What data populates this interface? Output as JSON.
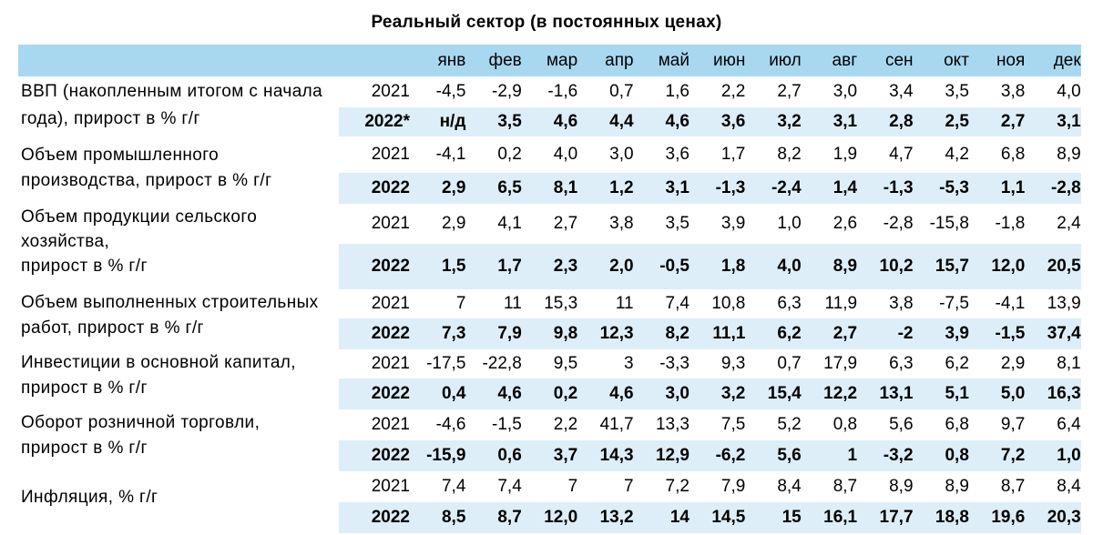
{
  "title": "Реальный сектор (в постоянных ценах)",
  "months": [
    "янв",
    "фев",
    "мар",
    "апр",
    "май",
    "июн",
    "июл",
    "авг",
    "сен",
    "окт",
    "ноя",
    "дек"
  ],
  "colors": {
    "header_bg": "#a8d8f0",
    "row2022_bg": "#ddeef8"
  },
  "indicators": [
    {
      "label_lines": [
        "ВВП (накопленным итогом с начала",
        "года), прирост в % г/г"
      ],
      "rows": [
        {
          "year": "2021",
          "values": [
            "-4,5",
            "-2,9",
            "-1,6",
            "0,7",
            "1,6",
            "2,2",
            "2,7",
            "3,0",
            "3,4",
            "3,5",
            "3,8",
            "4,0"
          ]
        },
        {
          "year": "2022*",
          "values": [
            "н/д",
            "3,5",
            "4,6",
            "4,4",
            "4,6",
            "3,6",
            "3,2",
            "3,1",
            "2,8",
            "2,5",
            "2,7",
            "3,1"
          ]
        }
      ]
    },
    {
      "label_lines": [
        "Объем промышленного",
        "производства, прирост в % г/г"
      ],
      "rows": [
        {
          "year": "2021",
          "values": [
            "-4,1",
            "0,2",
            "4,0",
            "3,0",
            "3,6",
            "1,7",
            "8,2",
            "1,9",
            "4,7",
            "4,2",
            "6,8",
            "8,9"
          ]
        },
        {
          "year": "2022",
          "values": [
            "2,9",
            "6,5",
            "8,1",
            "1,2",
            "3,1",
            "-1,3",
            "-2,4",
            "1,4",
            "-1,3",
            "-5,3",
            "1,1",
            "-2,8"
          ]
        }
      ]
    },
    {
      "label_lines": [
        "Объем продукции сельского",
        "хозяйства,",
        "прирост в % г/г"
      ],
      "rows": [
        {
          "year": "2021",
          "values": [
            "2,9",
            "4,1",
            "2,7",
            "3,8",
            "3,5",
            "3,9",
            "1,0",
            "2,6",
            "-2,8",
            "-15,8",
            "-1,8",
            "2,4"
          ]
        },
        {
          "year": "2022",
          "values": [
            "1,5",
            "1,7",
            "2,3",
            "2,0",
            "-0,5",
            "1,8",
            "4,0",
            "8,9",
            "10,2",
            "15,7",
            "12,0",
            "20,5"
          ]
        }
      ]
    },
    {
      "label_lines": [
        "Объем выполненных строительных",
        "работ, прирост в % г/г"
      ],
      "rows": [
        {
          "year": "2021",
          "values": [
            "7",
            "11",
            "15,3",
            "11",
            "7,4",
            "10,8",
            "6,3",
            "11,9",
            "3,8",
            "-7,5",
            "-4,1",
            "13,9"
          ]
        },
        {
          "year": "2022",
          "values": [
            "7,3",
            "7,9",
            "9,8",
            "12,3",
            "8,2",
            "11,1",
            "6,2",
            "2,7",
            "-2",
            "3,9",
            "-1,5",
            "37,4"
          ]
        }
      ]
    },
    {
      "label_lines": [
        "Инвестиции в основной капитал,",
        "прирост в % г/г"
      ],
      "rows": [
        {
          "year": "2021",
          "values": [
            "-17,5",
            "-22,8",
            "9,5",
            "3",
            "-3,3",
            "9,3",
            "0,7",
            "17,9",
            "6,3",
            "6,2",
            "2,9",
            "8,1"
          ]
        },
        {
          "year": "2022",
          "values": [
            "0,4",
            "4,6",
            "0,2",
            "4,6",
            "3,0",
            "3,2",
            "15,4",
            "12,2",
            "13,1",
            "5,1",
            "5,0",
            "16,3"
          ]
        }
      ]
    },
    {
      "label_lines": [
        "Оборот розничной торговли,",
        "прирост в % г/г"
      ],
      "rows": [
        {
          "year": "2021",
          "values": [
            "-4,6",
            "-1,5",
            "2,2",
            "41,7",
            "13,3",
            "7,5",
            "5,2",
            "0,8",
            "5,6",
            "6,8",
            "9,7",
            "6,4"
          ]
        },
        {
          "year": "2022",
          "values": [
            "-15,9",
            "0,6",
            "3,7",
            "14,3",
            "12,9",
            "-6,2",
            "5,6",
            "1",
            "-3,2",
            "0,8",
            "7,2",
            "1,0"
          ]
        }
      ]
    },
    {
      "label_lines": [
        "Инфляция, % г/г"
      ],
      "rows": [
        {
          "year": "2021",
          "values": [
            "7,4",
            "7,4",
            "7",
            "7",
            "7,2",
            "7,9",
            "8,4",
            "8,7",
            "8,9",
            "8,9",
            "8,7",
            "8,4"
          ]
        },
        {
          "year": "2022",
          "values": [
            "8,5",
            "8,7",
            "12,0",
            "13,2",
            "14",
            "14,5",
            "15",
            "16,1",
            "17,7",
            "18,8",
            "19,6",
            "20,3"
          ]
        }
      ]
    }
  ]
}
